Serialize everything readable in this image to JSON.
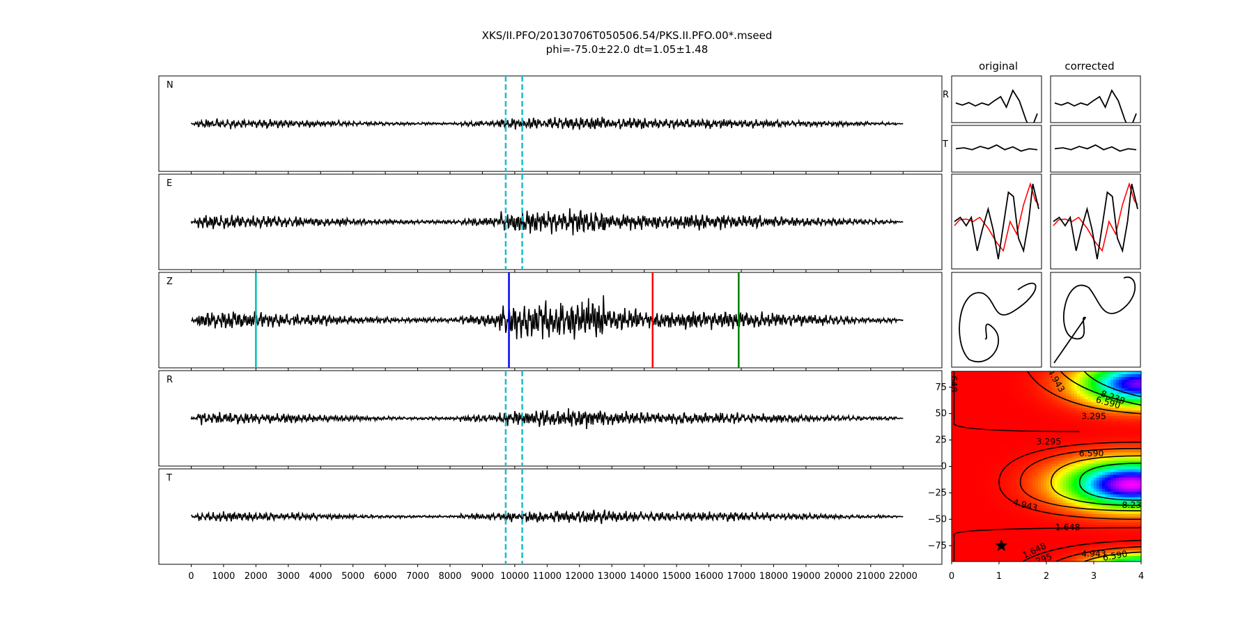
{
  "title": {
    "line1": "XKS/II.PFO/20130706T050506.54/PKS.II.PFO.00*.mseed",
    "line2": "phi=-75.0±22.0 dt=1.05±1.48"
  },
  "column_titles": {
    "original": "original",
    "corrected": "corrected"
  },
  "chart_data": [
    {
      "type": "line",
      "title": "",
      "panels": [
        {
          "label": "N",
          "amplitude": 0.55,
          "seed": 11,
          "burst": 1.0
        },
        {
          "label": "E",
          "amplitude": 0.8,
          "seed": 23,
          "burst": 1.6
        },
        {
          "label": "Z",
          "amplitude": 1.0,
          "seed": 37,
          "burst": 2.4
        },
        {
          "label": "R",
          "amplitude": 0.65,
          "seed": 41,
          "burst": 1.4
        },
        {
          "label": "T",
          "amplitude": 0.55,
          "seed": 53,
          "burst": 1.0
        }
      ],
      "x_range": [
        -1000,
        23200
      ],
      "x_ticks": [
        0,
        1000,
        2000,
        3000,
        4000,
        5000,
        6000,
        7000,
        8000,
        9000,
        10000,
        11000,
        12000,
        13000,
        14000,
        15000,
        16000,
        17000,
        18000,
        19000,
        20000,
        21000,
        22000
      ],
      "trace_x_range": [
        0,
        22000
      ],
      "window_start": 9720,
      "window_end": 10230,
      "window_color": "#17becf",
      "z_markers": [
        {
          "x": 2000,
          "color": "#00bfbf"
        },
        {
          "x": 9820,
          "color": "#0000ff"
        },
        {
          "x": 14260,
          "color": "#ff0000"
        },
        {
          "x": 16920,
          "color": "#008000"
        }
      ]
    },
    {
      "type": "line",
      "title": "original",
      "rows": [
        "R",
        "T"
      ],
      "series": [
        {
          "color": "#000000"
        },
        {
          "color": "#ff0000"
        }
      ]
    },
    {
      "type": "line",
      "title": "corrected",
      "series": [
        {
          "color": "#000000"
        },
        {
          "color": "#ff0000"
        }
      ]
    },
    {
      "type": "heatmap",
      "xlim": [
        0,
        4
      ],
      "ylim": [
        -90,
        90
      ],
      "x_ticks": [
        0,
        1,
        2,
        3,
        4
      ],
      "y_ticks": [
        75,
        50,
        25,
        0,
        -25,
        -50,
        -75
      ],
      "contour_labels": [
        {
          "text": "1.648",
          "x": 0.04,
          "y": 82,
          "rot": 90
        },
        {
          "text": "4.943",
          "x": 2.2,
          "y": 81,
          "rot": 60
        },
        {
          "text": "8.238",
          "x": 3.4,
          "y": 65,
          "rot": 20
        },
        {
          "text": "6.590",
          "x": 3.3,
          "y": 60,
          "rot": 15
        },
        {
          "text": "3.295",
          "x": 3.0,
          "y": 47,
          "rot": 0
        },
        {
          "text": "3.295",
          "x": 2.05,
          "y": 23,
          "rot": 0
        },
        {
          "text": "6.590",
          "x": 2.95,
          "y": 12,
          "rot": 0
        },
        {
          "text": "4.943",
          "x": 1.55,
          "y": -37,
          "rot": 15
        },
        {
          "text": "8.23",
          "x": 3.8,
          "y": -37,
          "rot": 0
        },
        {
          "text": "1.648",
          "x": 2.45,
          "y": -58,
          "rot": 0
        },
        {
          "text": "1.648",
          "x": 1.75,
          "y": -80,
          "rot": -25
        },
        {
          "text": "295",
          "x": 1.95,
          "y": -88,
          "rot": -20
        },
        {
          "text": "4.943",
          "x": 3.0,
          "y": -83,
          "rot": 0
        },
        {
          "text": "6.590",
          "x": 3.45,
          "y": -85,
          "rot": -10
        }
      ],
      "best_fit": {
        "dt": 1.05,
        "phi": -75.0
      }
    }
  ]
}
